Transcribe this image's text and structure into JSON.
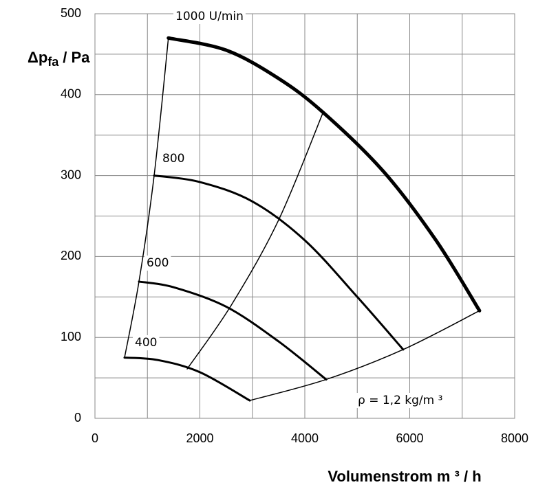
{
  "chart_data": {
    "type": "line",
    "ylabel": "Δp",
    "ylabel_sub": "fa",
    "ylabel_unit": "/ Pa",
    "xlabel": "Volumenstrom  m ³ / h",
    "xlim": [
      0,
      8000
    ],
    "ylim": [
      0,
      500
    ],
    "xticks": [
      0,
      2000,
      4000,
      6000,
      8000
    ],
    "yticks": [
      0,
      100,
      200,
      300,
      400,
      500
    ],
    "xgrid": [
      1000,
      3000,
      5000,
      7000
    ],
    "ygrid": [
      50,
      150,
      250,
      350,
      450
    ],
    "grid": true,
    "annotations": [
      "1000 U/min",
      "800",
      "600",
      "400",
      "ρ = 1,2 kg/m ³"
    ],
    "series": [
      {
        "color": "#000000",
        "width": 5,
        "x": [
          1400,
          2500,
          3500,
          4350,
          5500,
          6500,
          7330
        ],
        "values": [
          470,
          455,
          420,
          378,
          305,
          220,
          133
        ]
      },
      {
        "color": "#000000",
        "width": 3,
        "x": [
          1128,
          2000,
          3000,
          4000,
          5000,
          5875
        ],
        "values": [
          300,
          292,
          268,
          220,
          150,
          85
        ]
      },
      {
        "color": "#000000",
        "width": 3,
        "x": [
          839,
          1500,
          2500,
          3500,
          4407
        ],
        "values": [
          169,
          162,
          138,
          95,
          48
        ]
      },
      {
        "color": "#000000",
        "width": 3,
        "x": [
          564,
          1200,
          2000,
          2951
        ],
        "values": [
          75,
          72,
          57,
          22
        ]
      },
      {
        "color": "#000000",
        "width": 1.5,
        "x": [
          564,
          839,
          1128,
          1400
        ],
        "values": [
          75,
          169,
          300,
          470
        ]
      },
      {
        "color": "#000000",
        "width": 1.5,
        "x": [
          2951,
          4407,
          5875,
          7330
        ],
        "values": [
          22,
          48,
          85,
          133
        ]
      },
      {
        "color": "#000000",
        "width": 1.5,
        "x": [
          1757,
          2600,
          3500,
          4354
        ],
        "values": [
          61,
          140,
          245,
          379
        ]
      }
    ]
  }
}
